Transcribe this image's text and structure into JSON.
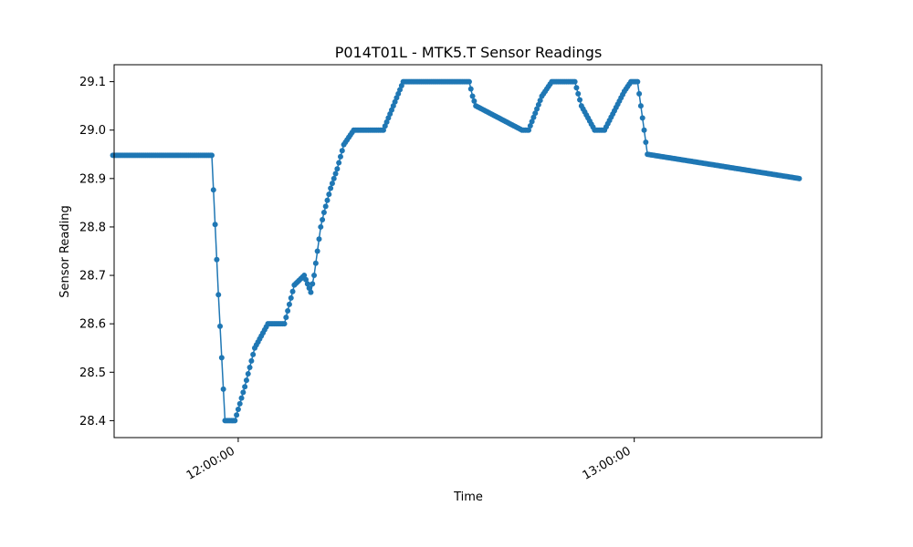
{
  "chart_data": {
    "type": "line",
    "title": "P014T01L - MTK5.T Sensor Readings",
    "xlabel": "Time",
    "ylabel": "Sensor Reading",
    "x_tick_labels": [
      "12:00:00",
      "13:00:00"
    ],
    "y_ticks": [
      28.4,
      28.5,
      28.6,
      28.7,
      28.8,
      28.9,
      29.0,
      29.1
    ],
    "y_tick_labels": [
      "28.4",
      "28.5",
      "28.6",
      "28.7",
      "28.8",
      "28.9",
      "29.0",
      "29.1"
    ],
    "xlim": [
      "11:41:12",
      "13:28:24"
    ],
    "ylim": [
      28.365,
      29.135
    ],
    "grid": false,
    "legend": "none",
    "series_color": "#1f77b4",
    "series": [
      {
        "name": "",
        "x": [
          "11:41:00",
          "11:56:00",
          "11:56:30",
          "11:57:00",
          "11:57:30",
          "11:58:00",
          "11:59:30",
          "12:01:00",
          "12:02:30",
          "12:04:30",
          "12:05:00",
          "12:07:00",
          "12:08:30",
          "12:10:00",
          "12:11:00",
          "12:11:30",
          "12:12:00",
          "12:12:30",
          "12:13:00",
          "12:14:00",
          "12:15:00",
          "12:16:00",
          "12:17:30",
          "12:19:00",
          "12:20:00",
          "12:22:00",
          "12:23:30",
          "12:25:00",
          "12:35:00",
          "12:35:30",
          "12:36:00",
          "12:43:00",
          "12:44:00",
          "12:46:00",
          "12:47:30",
          "12:51:00",
          "12:52:00",
          "12:54:00",
          "12:55:30",
          "12:58:30",
          "12:59:30",
          "13:00:30",
          "13:01:30",
          "13:02:00",
          "13:25:00"
        ],
        "values": [
          28.948,
          28.948,
          28.805,
          28.66,
          28.53,
          28.4,
          28.4,
          28.47,
          28.55,
          28.6,
          28.6,
          28.6,
          28.68,
          28.7,
          28.665,
          28.7,
          28.75,
          28.8,
          28.83,
          28.88,
          28.92,
          28.97,
          29.0,
          29.0,
          29.0,
          29.0,
          29.05,
          29.1,
          29.1,
          29.07,
          29.05,
          29.0,
          29.0,
          29.07,
          29.1,
          29.1,
          29.05,
          29.0,
          29.0,
          29.08,
          29.1,
          29.1,
          29.0,
          28.95,
          28.9
        ]
      }
    ]
  }
}
